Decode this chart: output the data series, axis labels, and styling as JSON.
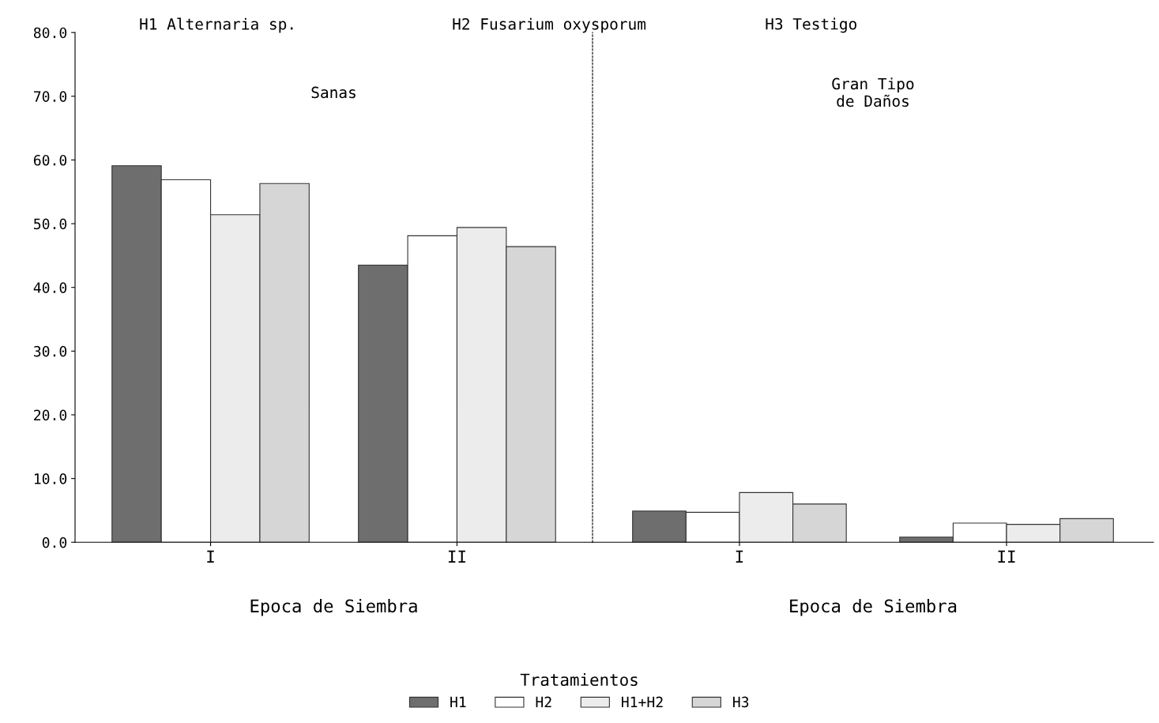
{
  "chart_data": [
    {
      "type": "bar",
      "title": "Sanas",
      "xlabel": "Epoca de Siembra",
      "categories": [
        "I",
        "II"
      ],
      "series": [
        {
          "name": "H1",
          "color": "#6e6e6e",
          "values": [
            59.1,
            43.5
          ]
        },
        {
          "name": "H2",
          "color": "#ffffff",
          "values": [
            56.9,
            48.1
          ]
        },
        {
          "name": "H1+H2",
          "color": "#ececec",
          "values": [
            51.4,
            49.4
          ]
        },
        {
          "name": "H3",
          "color": "#d6d6d6",
          "values": [
            56.3,
            46.4
          ]
        }
      ],
      "ylim": [
        0,
        80
      ],
      "yticks": [
        {
          "value": 0,
          "label": "0.0"
        },
        {
          "value": 10,
          "label": "10.0"
        },
        {
          "value": 20,
          "label": "20.0"
        },
        {
          "value": 30,
          "label": "30.0"
        },
        {
          "value": 40,
          "label": "40.0"
        },
        {
          "value": 50,
          "label": "50.0"
        },
        {
          "value": 60,
          "label": "60.0"
        },
        {
          "value": 70,
          "label": "70.0"
        },
        {
          "value": 80,
          "label": "80.0"
        }
      ],
      "legend": "bottom",
      "legend_title": "Tratamientos",
      "annotations": [
        "H1 Alternaria sp.",
        "H2 Fusarium oxysporum",
        "H3 Testigo"
      ]
    },
    {
      "type": "bar",
      "title": "Gran Tipo\nde Daños",
      "xlabel": "Epoca de Siembra",
      "categories": [
        "I",
        "II"
      ],
      "series": [
        {
          "color": "#6e6e6e",
          "values": [
            4.9,
            0.8
          ]
        },
        {
          "color": "#ffffff",
          "values": [
            4.7,
            3.0
          ]
        },
        {
          "color": "#ececec",
          "values": [
            7.8,
            2.8
          ]
        },
        {
          "color": "#d6d6d6",
          "values": [
            6.0,
            3.7
          ]
        }
      ],
      "ylim": [
        0,
        80
      ],
      "tick_labels": "x"
    }
  ]
}
